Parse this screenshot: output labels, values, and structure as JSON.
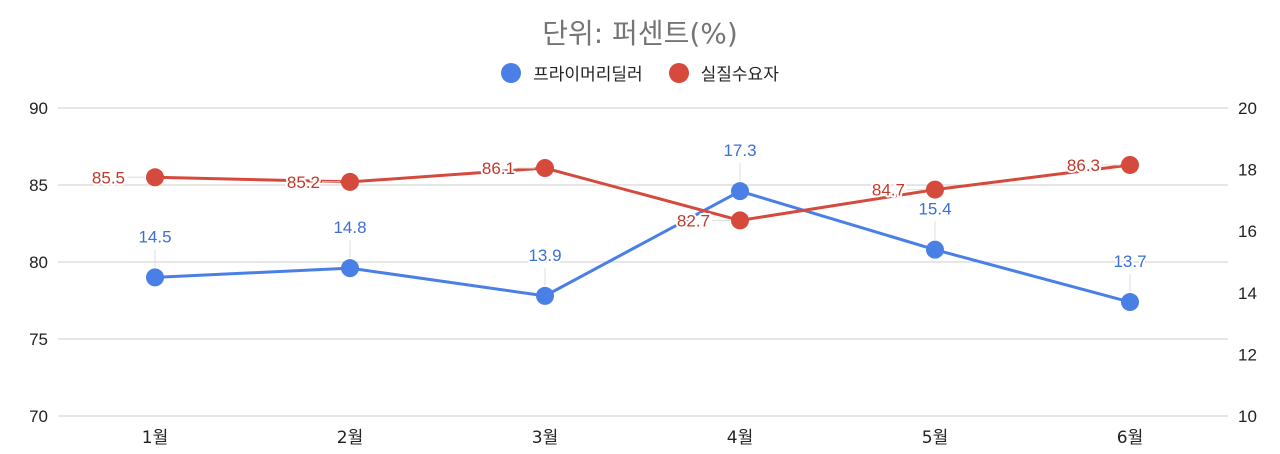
{
  "chart_data": {
    "type": "line",
    "title": "단위: 퍼센트(%)",
    "categories": [
      "1월",
      "2월",
      "3월",
      "4월",
      "5월",
      "6월"
    ],
    "series": [
      {
        "name": "프라이머리딜러",
        "axis": "right",
        "color": "#4a7fe5",
        "label_color": "#3d6fd6",
        "values": [
          14.5,
          14.8,
          13.9,
          17.3,
          15.4,
          13.7
        ]
      },
      {
        "name": "실질수요자",
        "axis": "left",
        "color": "#d54a3c",
        "label_color": "#c0392b",
        "values": [
          85.5,
          85.2,
          86.1,
          82.7,
          84.7,
          86.3
        ]
      }
    ],
    "left_axis": {
      "ticks": [
        90,
        85,
        80,
        75,
        70
      ],
      "ylim": [
        70,
        90
      ]
    },
    "right_axis": {
      "ticks": [
        20,
        18,
        16,
        14,
        12,
        10
      ],
      "ylim": [
        10,
        20
      ]
    },
    "grid": true,
    "legend_position": "top",
    "xlabel": "",
    "ylabel": ""
  },
  "legend": [
    {
      "label": "프라이머리딜러",
      "color": "#4a7fe5"
    },
    {
      "label": "실질수요자",
      "color": "#d54a3c"
    }
  ]
}
